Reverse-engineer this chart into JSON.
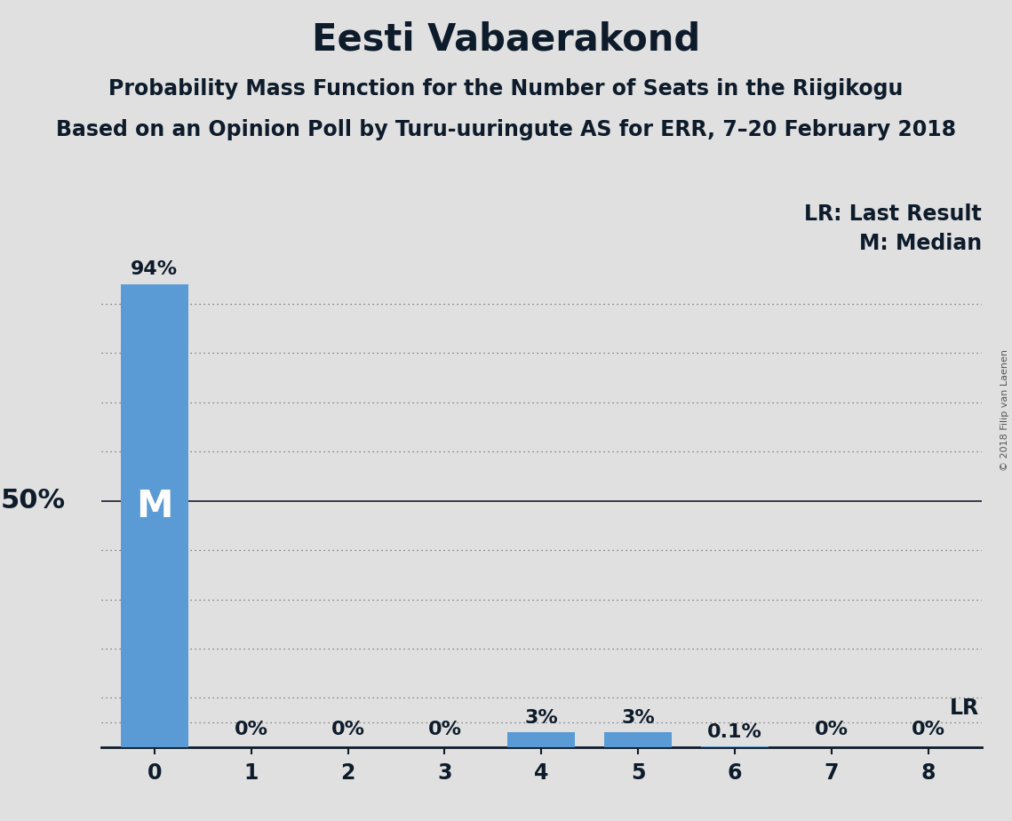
{
  "title": "Eesti Vabaerakond",
  "subtitle1": "Probability Mass Function for the Number of Seats in the Riigikogu",
  "subtitle2": "Based on an Opinion Poll by Turu-uuringute AS for ERR, 7–20 February 2018",
  "copyright": "© 2018 Filip van Laenen",
  "categories": [
    0,
    1,
    2,
    3,
    4,
    5,
    6,
    7,
    8
  ],
  "values": [
    94,
    0,
    0,
    0,
    3,
    3,
    0.1,
    0,
    0
  ],
  "labels": [
    "94%",
    "0%",
    "0%",
    "0%",
    "3%",
    "3%",
    "0.1%",
    "0%",
    "0%"
  ],
  "bar_color": "#5b9bd5",
  "median_seat": 0,
  "lr_value": 5.0,
  "annotation_lr": "LR: Last Result",
  "annotation_m": "M: Median",
  "annotation_lr_short": "LR",
  "ylabel_50": "50%",
  "background_color": "#e0e0e0",
  "ylim": [
    0,
    100
  ],
  "grid_lines": [
    10,
    20,
    30,
    40,
    50,
    60,
    70,
    80,
    90
  ],
  "title_fontsize": 30,
  "subtitle_fontsize": 17,
  "label_fontsize": 16,
  "tick_fontsize": 17,
  "annot_fontsize": 17,
  "ylabel_fontsize": 22,
  "m_fontsize": 30,
  "text_color": "#0d1b2a",
  "grid_color": "#666666",
  "solid_line_color": "#1a1a2e"
}
